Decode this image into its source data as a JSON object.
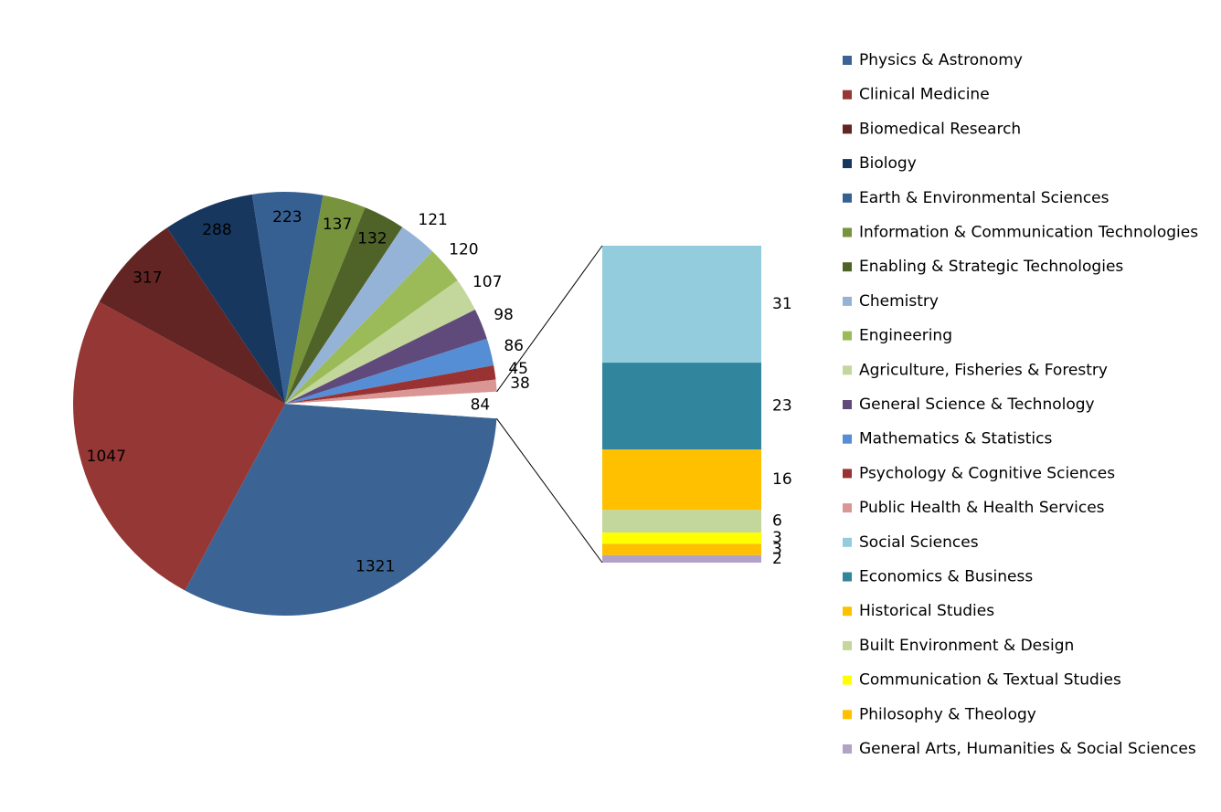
{
  "chart_data": {
    "type": "pie-of-bar",
    "categories": [
      "Physics & Astronomy",
      "Clinical Medicine",
      "Biomedical Research",
      "Biology",
      "Earth & Environmental Sciences",
      "Information & Communication Technologies",
      "Enabling & Strategic Technologies",
      "Chemistry",
      "Engineering",
      "Agriculture, Fisheries & Forestry",
      "General Science & Technology",
      "Mathematics & Statistics",
      "Psychology & Cognitive Sciences",
      "Public Health & Health Services"
    ],
    "values": [
      1321,
      1047,
      317,
      288,
      223,
      137,
      132,
      121,
      120,
      107,
      98,
      86,
      45,
      38
    ],
    "colors": [
      "#3b6495",
      "#953735",
      "#632523",
      "#17375e",
      "#376092",
      "#77933c",
      "#4f6228",
      "#95b3d7",
      "#9bbb59",
      "#c3d69b",
      "#604a7b",
      "#558ed5",
      "#993333",
      "#d99694"
    ],
    "other_value": 84,
    "bar_categories": [
      "Social Sciences",
      "Economics & Business",
      "Historical Studies",
      "Built Environment & Design",
      "Communication & Textual Studies",
      "Philosophy & Theology",
      "General Arts, Humanities & Social Sciences"
    ],
    "bar_values": [
      31,
      23,
      16,
      6,
      3,
      3,
      2
    ],
    "bar_colors": [
      "#93cddd",
      "#31859c",
      "#ffc000",
      "#c3d69b",
      "#ffff00",
      "#ffc000",
      "#b3a2c7"
    ]
  }
}
